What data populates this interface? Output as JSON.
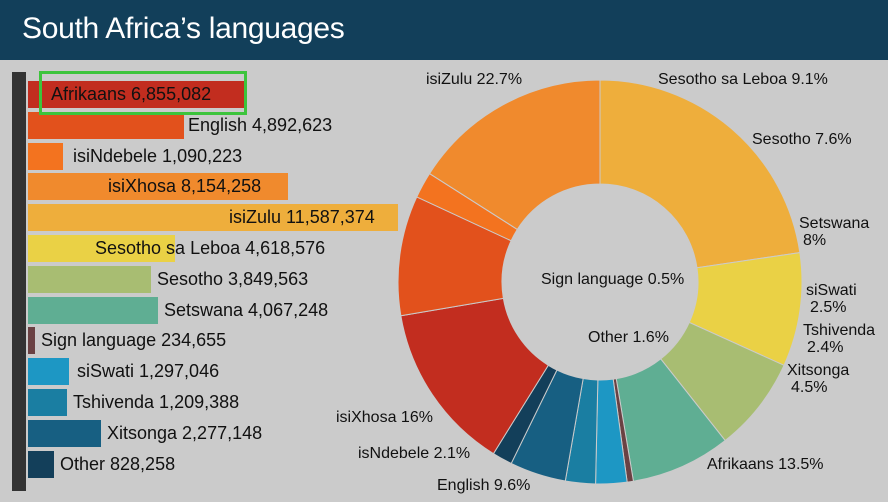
{
  "header": {
    "title": "South Africa’s languages"
  },
  "colors": {
    "header_bg": "#123f5a",
    "background": "#cbcbcb",
    "highlight_border": "#3cc43c"
  },
  "chart_data": [
    {
      "type": "bar",
      "orientation": "horizontal",
      "categories": [
        "Afrikaans",
        "English",
        "isiNdebele",
        "isiXhosa",
        "isiZulu",
        "Sesotho sa Leboa",
        "Sesotho",
        "Setswana",
        "Sign language",
        "siSwati",
        "Tshivenda",
        "Xitsonga",
        "Other"
      ],
      "values": [
        6855082,
        4892623,
        1090223,
        8154258,
        11587374,
        4618576,
        3849563,
        4067248,
        234655,
        1297046,
        1209388,
        2277148,
        828258
      ],
      "labels": [
        "Afrikaans 6,855,082",
        "English 4,892,623",
        "isiNdebele 1,090,223",
        "isiXhosa 8,154,258",
        "isiZulu 11,587,374",
        "Sesotho sa Leboa 4,618,576",
        "Sesotho 3,849,563",
        "Setswana 4,067,248",
        "Sign language 234,655",
        "siSwati 1,297,046",
        "Tshivenda 1,209,388",
        "Xitsonga 2,277,148",
        "Other 828,258"
      ],
      "colors": [
        "#c22d1f",
        "#e2511c",
        "#f3731f",
        "#f08a2d",
        "#eeae3c",
        "#ead145",
        "#a8bd72",
        "#5fae93",
        "#6a4143",
        "#1d97c4",
        "#1a7ea2",
        "#175f82",
        "#133f5a"
      ],
      "highlighted": "Afrikaans"
    },
    {
      "type": "pie",
      "variant": "donut",
      "categories": [
        "isiZulu",
        "Sesotho sa Leboa",
        "Sesotho",
        "Setswana",
        "Sign language",
        "siSwati",
        "Tshivenda",
        "Xitsonga",
        "Other",
        "Afrikaans",
        "English",
        "isNdebele",
        "isiXhosa"
      ],
      "values": [
        22.7,
        9.1,
        7.6,
        8,
        0.5,
        2.5,
        2.4,
        4.5,
        1.6,
        13.5,
        9.6,
        2.1,
        16
      ],
      "colors": [
        "#eeae3c",
        "#ead145",
        "#a8bd72",
        "#5fae93",
        "#6a4143",
        "#1d97c4",
        "#1a7ea2",
        "#175f82",
        "#133f5a",
        "#c22d1f",
        "#e2511c",
        "#f3731f",
        "#f08a2d"
      ],
      "labels": [
        {
          "text": "isiZulu 22.7%"
        },
        {
          "text": "Sesotho sa Leboa 9.1%"
        },
        {
          "text": "Sesotho 7.6%"
        },
        {
          "text": "Setswana",
          "text2": "8%"
        },
        {
          "text": "Sign language 0.5%"
        },
        {
          "text": "siSwati",
          "text2": "2.5%"
        },
        {
          "text": "Tshivenda",
          "text2": "2.4%"
        },
        {
          "text": "Xitsonga",
          "text2": "4.5%"
        },
        {
          "text": "Other 1.6%"
        },
        {
          "text": "Afrikaans 13.5%"
        },
        {
          "text": "English 9.6%"
        },
        {
          "text": "isNdebele 2.1%"
        },
        {
          "text": "isiXhosa 16%"
        }
      ]
    }
  ]
}
